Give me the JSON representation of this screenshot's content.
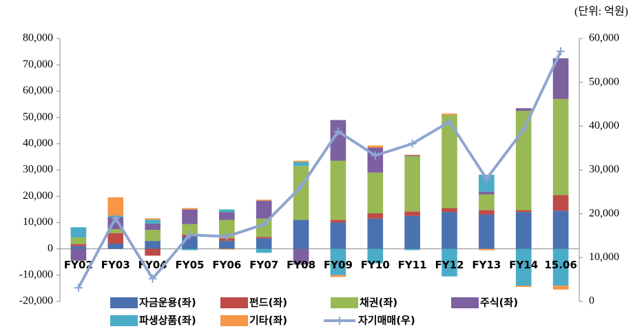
{
  "chart_data": {
    "type": "bar",
    "stacked": true,
    "unit": "(단위:  억원)",
    "categories": [
      "FY02",
      "FY03",
      "FY04",
      "FY05",
      "FY06",
      "FY07",
      "FY08",
      "FY09",
      "FY10",
      "FY11",
      "FY12",
      "FY13",
      "FY14",
      "15.06"
    ],
    "series": [
      {
        "name": "자금운용(좌)",
        "color": "#4a71b0",
        "values": [
          1000,
          2000,
          3000,
          4600,
          3000,
          4000,
          11000,
          10000,
          11500,
          12500,
          14000,
          13000,
          14000,
          14500
        ]
      },
      {
        "name": "펀드(좌)",
        "color": "#be4b48",
        "values": [
          800,
          4000,
          -2600,
          800,
          1000,
          500,
          0,
          1000,
          2000,
          1700,
          1500,
          1700,
          700,
          6000
        ]
      },
      {
        "name": "채권(좌)",
        "color": "#98b954",
        "values": [
          2500,
          1500,
          4200,
          4000,
          7000,
          7000,
          20500,
          22500,
          15500,
          21000,
          35500,
          6000,
          37800,
          36500
        ]
      },
      {
        "name": "주식(좌)",
        "color": "#7d60a0",
        "values": [
          -4500,
          4600,
          2400,
          5600,
          3000,
          6800,
          -6000,
          15500,
          9500,
          300,
          0,
          1000,
          1000,
          15500
        ]
      },
      {
        "name": "파생상품(좌)",
        "color": "#4aacc6",
        "values": [
          3900,
          500,
          1500,
          -500,
          1000,
          -1500,
          1500,
          -10000,
          -5500,
          -500,
          -10500,
          6500,
          -14000,
          -14000
        ]
      },
      {
        "name": "기타(좌)",
        "color": "#f79646",
        "values": [
          0,
          7000,
          500,
          500,
          -300,
          400,
          500,
          -700,
          800,
          300,
          500,
          -500,
          -500,
          -1500
        ]
      },
      {
        "name": "자기매매(우)",
        "color": "#8ea5d0",
        "type": "line",
        "axis": "y2",
        "values": [
          3100,
          19000,
          5200,
          15200,
          14800,
          17600,
          26200,
          38800,
          33300,
          36000,
          41000,
          28000,
          39200,
          57100
        ]
      }
    ],
    "ylim": [
      -20000,
      80000
    ],
    "yticks": [
      {
        "value": -20000,
        "label": "-20,000"
      },
      {
        "value": -10000,
        "label": "-10,000"
      },
      0,
      {
        "value": 10000,
        "label": "10,000"
      },
      {
        "value": 20000,
        "label": "20,000"
      },
      {
        "value": 30000,
        "label": "30,000"
      },
      {
        "value": 40000,
        "label": "40,000"
      },
      {
        "value": 50000,
        "label": "50,000"
      },
      {
        "value": 60000,
        "label": "60,000"
      },
      {
        "value": 70000,
        "label": "70,000"
      },
      {
        "value": 80000,
        "label": "80,000"
      }
    ],
    "y2lim": [
      0,
      60000
    ],
    "y2ticks": [
      0,
      {
        "value": 10000,
        "label": "10,000"
      },
      {
        "value": 20000,
        "label": "20,000"
      },
      {
        "value": 30000,
        "label": "30,000"
      },
      {
        "value": 40000,
        "label": "40,000"
      },
      {
        "value": 50000,
        "label": "50,000"
      },
      {
        "value": 60000,
        "label": "60,000"
      }
    ],
    "grid": false
  }
}
